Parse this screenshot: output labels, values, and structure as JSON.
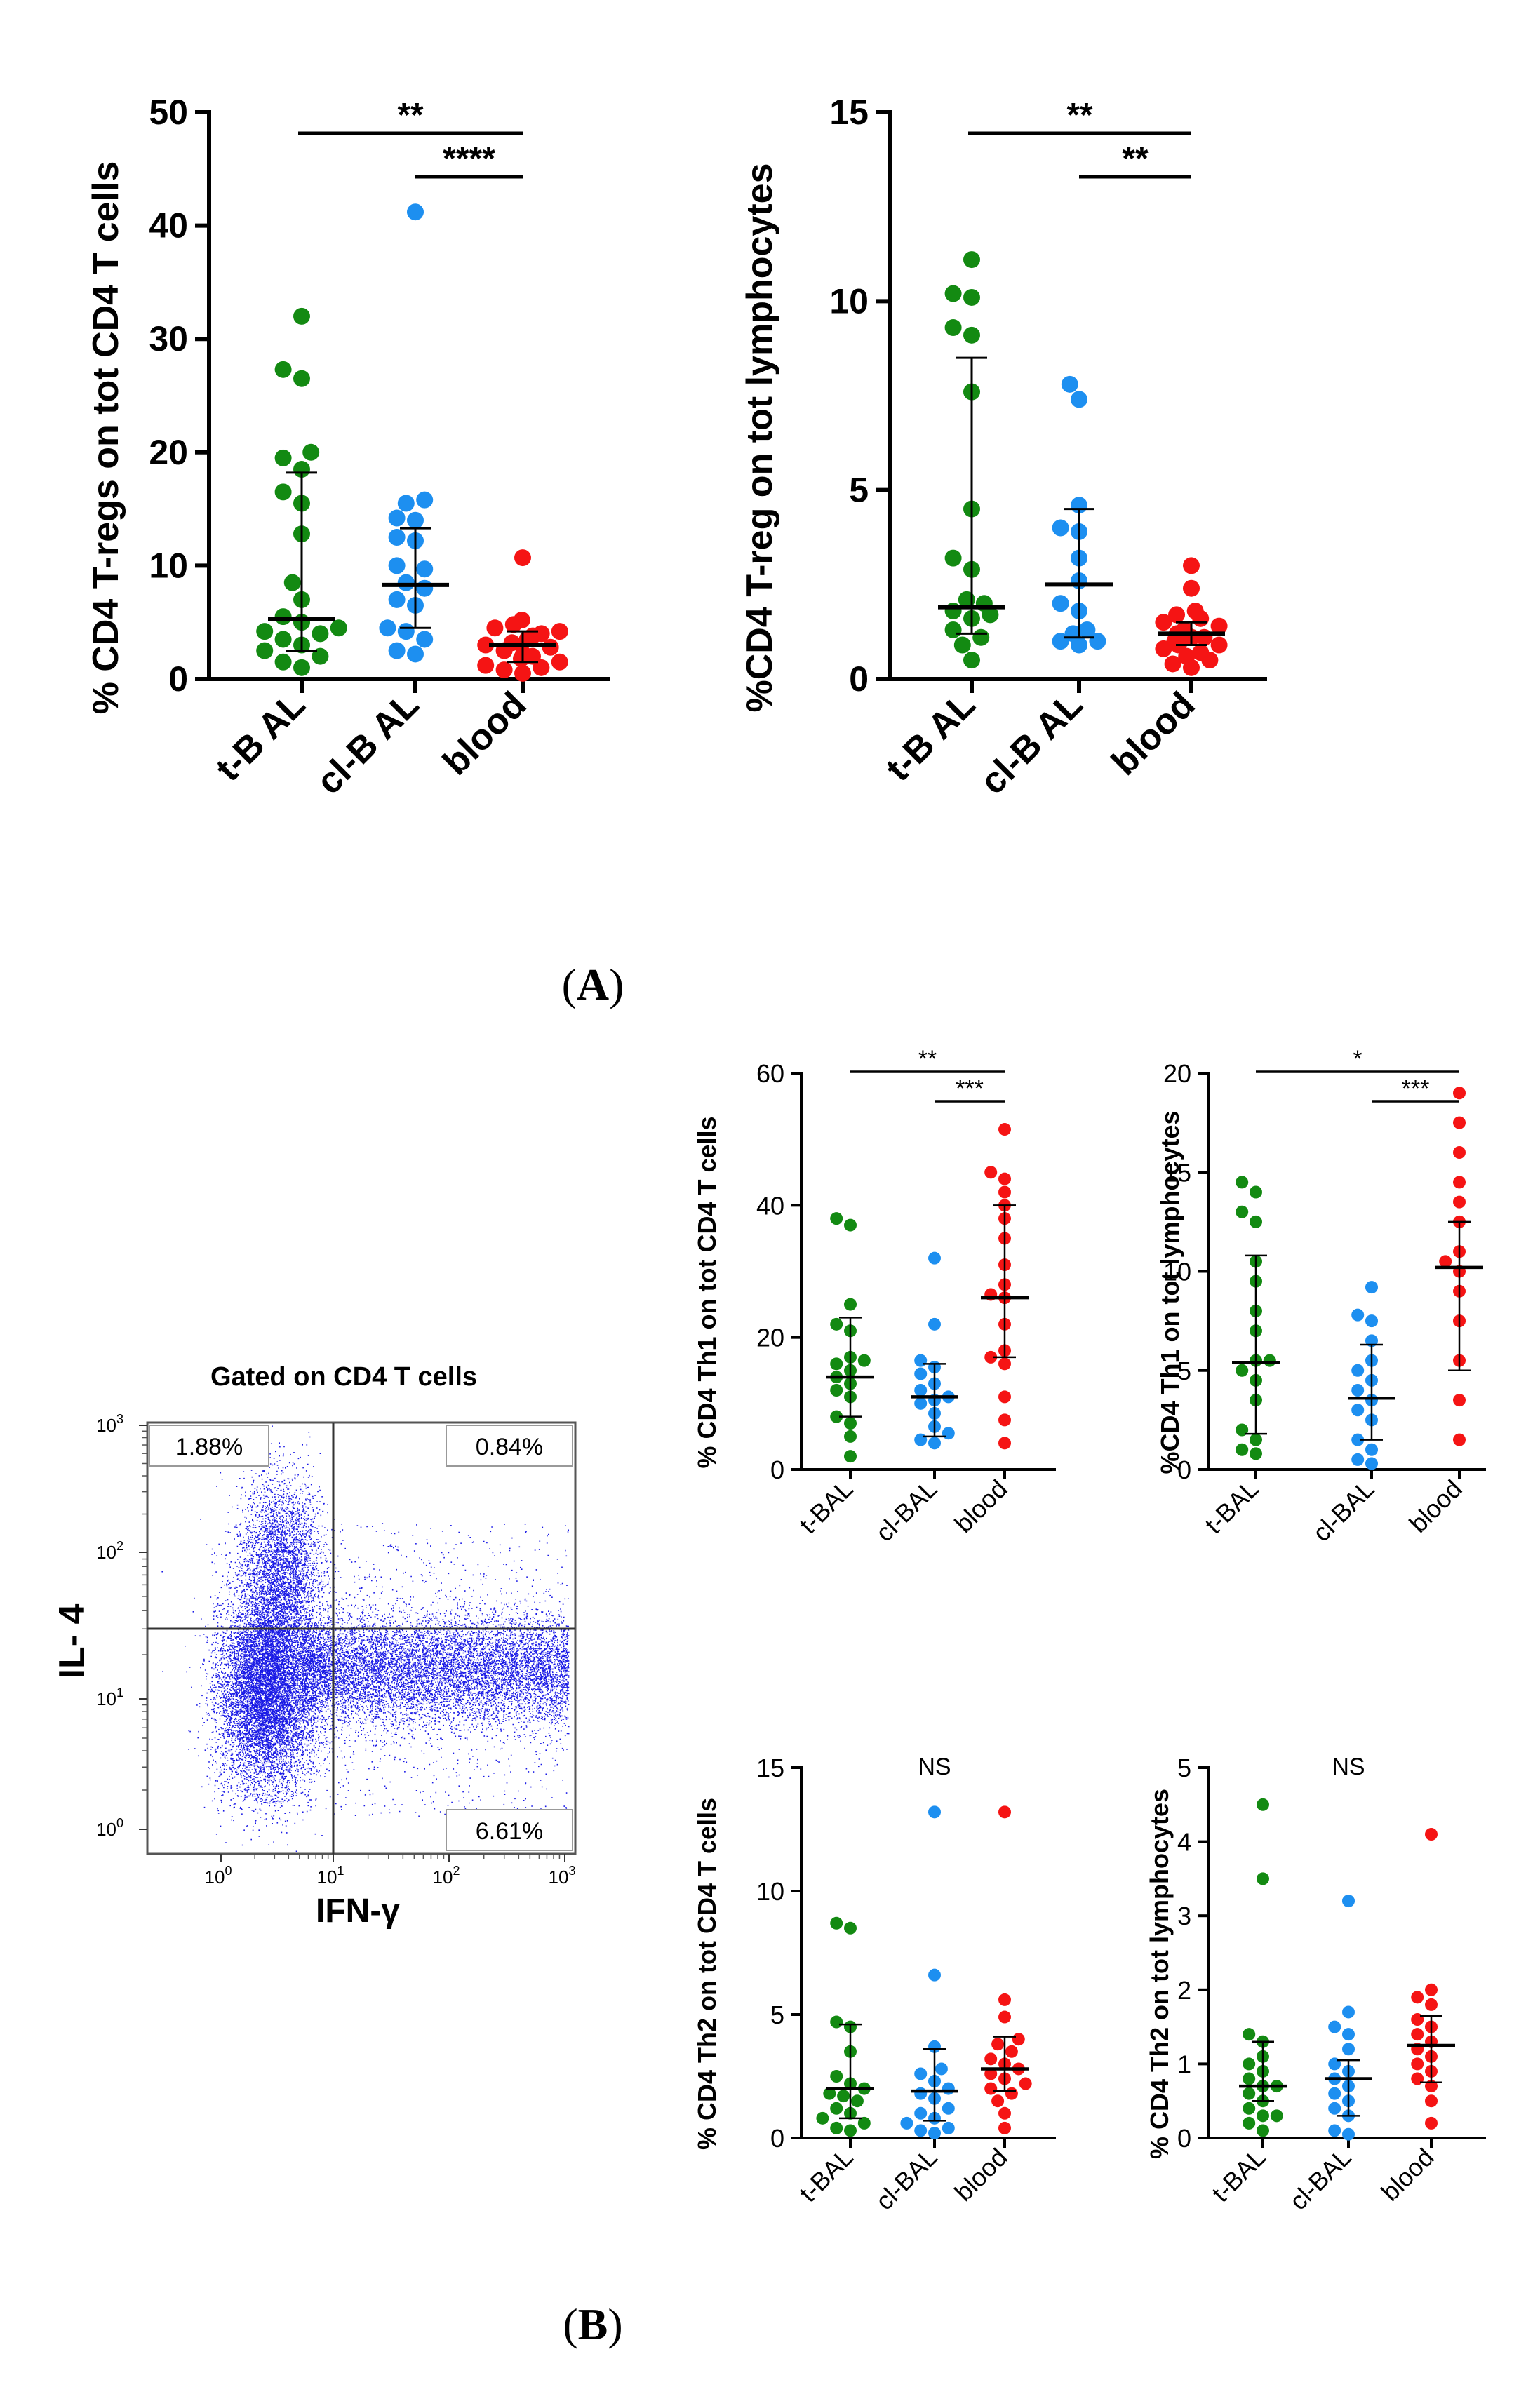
{
  "panel_labels": {
    "a": "A",
    "b": "B"
  },
  "colors": {
    "t-BAL": "#138a12",
    "cl-BAL": "#1d8ff0",
    "blood": "#f51414",
    "flow_dots": "#1a1ae6"
  },
  "chart_data": [
    {
      "id": "a1",
      "type": "scatter",
      "title": "",
      "ylabel": "% CD4 T-regs on tot CD4 T cells",
      "categories": [
        "t-B AL",
        "cl-B AL",
        "blood"
      ],
      "ylim": [
        0,
        50
      ],
      "yticks": [
        "0",
        "10",
        "20",
        "30",
        "40",
        "50"
      ],
      "series": [
        {
          "name": "t-BAL",
          "values": [
            32,
            27.3,
            26.5,
            20,
            19.5,
            18.5,
            16.5,
            15.5,
            12.8,
            8.5,
            7,
            5.5,
            5,
            4.5,
            4.2,
            4,
            3.5,
            3,
            2.5,
            2,
            1.5,
            1
          ],
          "median": 5.3,
          "q1": 2.5,
          "q3": 18.2
        },
        {
          "name": "cl-BAL",
          "values": [
            41.2,
            15.8,
            15.5,
            14.2,
            14,
            12.5,
            12.2,
            10,
            9.7,
            8.5,
            8,
            7,
            6.5,
            4.5,
            4.2,
            3.5,
            2.5,
            2.2
          ],
          "median": 8.3,
          "q1": 4.5,
          "q3": 13.3
        },
        {
          "name": "blood",
          "values": [
            10.7,
            5.2,
            4.8,
            4.5,
            4.2,
            4,
            3.8,
            3.5,
            3.2,
            3,
            2.8,
            2.5,
            2.2,
            2,
            1.8,
            1.5,
            1.2,
            1,
            0.8,
            0.5
          ],
          "median": 3,
          "q1": 1.5,
          "q3": 4.2
        }
      ],
      "significance": [
        {
          "label": "**",
          "from": "t-BAL",
          "to": "blood"
        },
        {
          "label": "****",
          "from": "cl-BAL",
          "to": "blood"
        }
      ]
    },
    {
      "id": "a2",
      "type": "scatter",
      "title": "",
      "ylabel": "%CD4 T-reg on tot lymphocytes",
      "categories": [
        "t-B AL",
        "cl-B AL",
        "blood"
      ],
      "ylim": [
        0,
        15
      ],
      "yticks": [
        "0",
        "5",
        "10",
        "15"
      ],
      "series": [
        {
          "name": "t-BAL",
          "values": [
            11.1,
            10.2,
            10.1,
            9.3,
            9.1,
            7.6,
            4.5,
            3.2,
            2.9,
            2.1,
            2,
            1.8,
            1.7,
            1.6,
            1.3,
            1.1,
            0.9,
            0.5
          ],
          "median": 1.9,
          "q1": 1.2,
          "q3": 8.5
        },
        {
          "name": "cl-BAL",
          "values": [
            7.8,
            7.4,
            4.6,
            4,
            3.9,
            3.2,
            2.6,
            2,
            1.8,
            1.3,
            1.2,
            1,
            1,
            0.9
          ],
          "median": 2.5,
          "q1": 1.1,
          "q3": 4.5
        },
        {
          "name": "blood",
          "values": [
            3,
            2.4,
            1.8,
            1.6,
            1.5,
            1.4,
            1.3,
            1.2,
            1.1,
            1,
            0.9,
            0.8,
            0.7,
            0.6,
            0.5,
            0.4,
            0.3,
            1.7,
            1.1,
            0.9
          ],
          "median": 1.2,
          "q1": 0.9,
          "q3": 1.5
        }
      ],
      "significance": [
        {
          "label": "**",
          "from": "t-BAL",
          "to": "blood"
        },
        {
          "label": "**",
          "from": "cl-BAL",
          "to": "blood"
        }
      ]
    },
    {
      "id": "b1",
      "type": "scatter",
      "ylabel": "% CD4 Th1 on tot CD4 T cells",
      "categories": [
        "t-BAL",
        "cl-BAL",
        "blood"
      ],
      "ylim": [
        0,
        60
      ],
      "yticks": [
        "0",
        "20",
        "40",
        "60"
      ],
      "series": [
        {
          "name": "t-BAL",
          "values": [
            38,
            37,
            25,
            22,
            21,
            17,
            16.5,
            16,
            15,
            14,
            13,
            12,
            11,
            8,
            7,
            5,
            2
          ],
          "median": 14,
          "q1": 8,
          "q3": 23
        },
        {
          "name": "cl-BAL",
          "values": [
            32,
            22,
            16.5,
            15.5,
            14.5,
            13,
            12,
            11,
            10.5,
            10,
            8.5,
            6.5,
            5.5,
            4.5,
            4
          ],
          "median": 11,
          "q1": 5,
          "q3": 16
        },
        {
          "name": "blood",
          "values": [
            51.5,
            45,
            44,
            42,
            40,
            38,
            35,
            31,
            28,
            26.5,
            26,
            22,
            18,
            17,
            16,
            11,
            7.5,
            4
          ],
          "median": 26,
          "q1": 17,
          "q3": 40
        }
      ],
      "significance": [
        {
          "label": "**",
          "from": "t-BAL",
          "to": "blood"
        },
        {
          "label": "***",
          "from": "cl-BAL",
          "to": "blood"
        }
      ]
    },
    {
      "id": "b2",
      "type": "scatter",
      "ylabel": "%CD4 Th1 on tot lymphocytes",
      "categories": [
        "t-BAL",
        "cl-BAL",
        "blood"
      ],
      "ylim": [
        0,
        20
      ],
      "yticks": [
        "0",
        "5",
        "10",
        "15",
        "20"
      ],
      "series": [
        {
          "name": "t-BAL",
          "values": [
            14.5,
            14,
            13,
            12.5,
            10.5,
            9.5,
            8,
            7,
            5.5,
            5.5,
            5,
            4.5,
            3.5,
            2,
            1.5,
            1,
            0.8
          ],
          "median": 5.4,
          "q1": 1.8,
          "q3": 10.8
        },
        {
          "name": "cl-BAL",
          "values": [
            9.2,
            7.8,
            7.5,
            6.5,
            5.5,
            5,
            4.5,
            4,
            3.5,
            3,
            2.5,
            1.5,
            1,
            0.5,
            0.3
          ],
          "median": 3.6,
          "q1": 1.5,
          "q3": 6.3
        },
        {
          "name": "blood",
          "values": [
            19,
            17.5,
            16,
            14.5,
            13.5,
            12.5,
            11,
            10.5,
            10,
            9,
            7.5,
            5.5,
            3.5,
            1.5
          ],
          "median": 10.2,
          "q1": 5,
          "q3": 12.5
        }
      ],
      "significance": [
        {
          "label": "*",
          "from": "t-BAL",
          "to": "blood"
        },
        {
          "label": "***",
          "from": "cl-BAL",
          "to": "blood"
        }
      ]
    },
    {
      "id": "b3",
      "type": "scatter",
      "ylabel": "% CD4 Th2 on tot CD4 T cells",
      "categories": [
        "t-BAL",
        "cl-BAL",
        "blood"
      ],
      "ylim": [
        0,
        15
      ],
      "yticks": [
        "0",
        "5",
        "10",
        "15"
      ],
      "annotation": "NS",
      "series": [
        {
          "name": "t-BAL",
          "values": [
            8.7,
            8.5,
            4.7,
            4.5,
            3.5,
            2.5,
            2.2,
            2,
            1.8,
            1.7,
            1.5,
            1.2,
            1,
            0.8,
            0.6,
            0.4,
            0.3
          ],
          "median": 2,
          "q1": 0.8,
          "q3": 4.6
        },
        {
          "name": "cl-BAL",
          "values": [
            13.2,
            6.6,
            3.7,
            2.8,
            2.6,
            2.3,
            2,
            1.8,
            1.6,
            1.2,
            1,
            0.8,
            0.6,
            0.4,
            0.3,
            0.2
          ],
          "median": 1.9,
          "q1": 0.7,
          "q3": 3.6
        },
        {
          "name": "blood",
          "values": [
            13.2,
            5.6,
            4.9,
            4,
            3.8,
            3.5,
            3.2,
            3,
            2.8,
            2.6,
            2.4,
            2.2,
            2,
            1.8,
            1.5,
            1,
            0.4
          ],
          "median": 2.8,
          "q1": 1.9,
          "q3": 4.1
        }
      ]
    },
    {
      "id": "b4",
      "type": "scatter",
      "ylabel": "% CD4 Th2 on tot lymphocytes",
      "categories": [
        "t-BAL",
        "cl-BAL",
        "blood"
      ],
      "ylim": [
        0,
        5
      ],
      "yticks": [
        "0",
        "1",
        "2",
        "3",
        "4",
        "5"
      ],
      "annotation": "NS",
      "series": [
        {
          "name": "t-BAL",
          "values": [
            4.5,
            3.5,
            1.4,
            1.3,
            1.1,
            1,
            0.9,
            0.8,
            0.7,
            0.7,
            0.6,
            0.5,
            0.4,
            0.3,
            0.3,
            0.2,
            0.1
          ],
          "median": 0.7,
          "q1": 0.5,
          "q3": 1.3
        },
        {
          "name": "cl-BAL",
          "values": [
            3.2,
            1.7,
            1.5,
            1.4,
            1.2,
            1,
            0.9,
            0.8,
            0.7,
            0.6,
            0.5,
            0.4,
            0.3,
            0.1,
            0.05
          ],
          "median": 0.8,
          "q1": 0.3,
          "q3": 1.05
        },
        {
          "name": "blood",
          "values": [
            4.1,
            2,
            1.9,
            1.8,
            1.6,
            1.5,
            1.4,
            1.3,
            1.2,
            1.1,
            1,
            0.9,
            0.8,
            0.7,
            0.5,
            0.2
          ],
          "median": 1.25,
          "q1": 0.75,
          "q3": 1.65
        }
      ]
    }
  ],
  "flow": {
    "title": "Gated on CD4 T cells",
    "xlabel": "IFN-γ",
    "ylabel": "IL- 4",
    "ticks": [
      "10",
      "10",
      "10",
      "10"
    ],
    "tick_exps": [
      "0",
      "1",
      "2",
      "3"
    ],
    "quadrants": {
      "upper_left": "1.88%",
      "upper_right": "0.84%",
      "lower_right": "6.61%"
    }
  }
}
